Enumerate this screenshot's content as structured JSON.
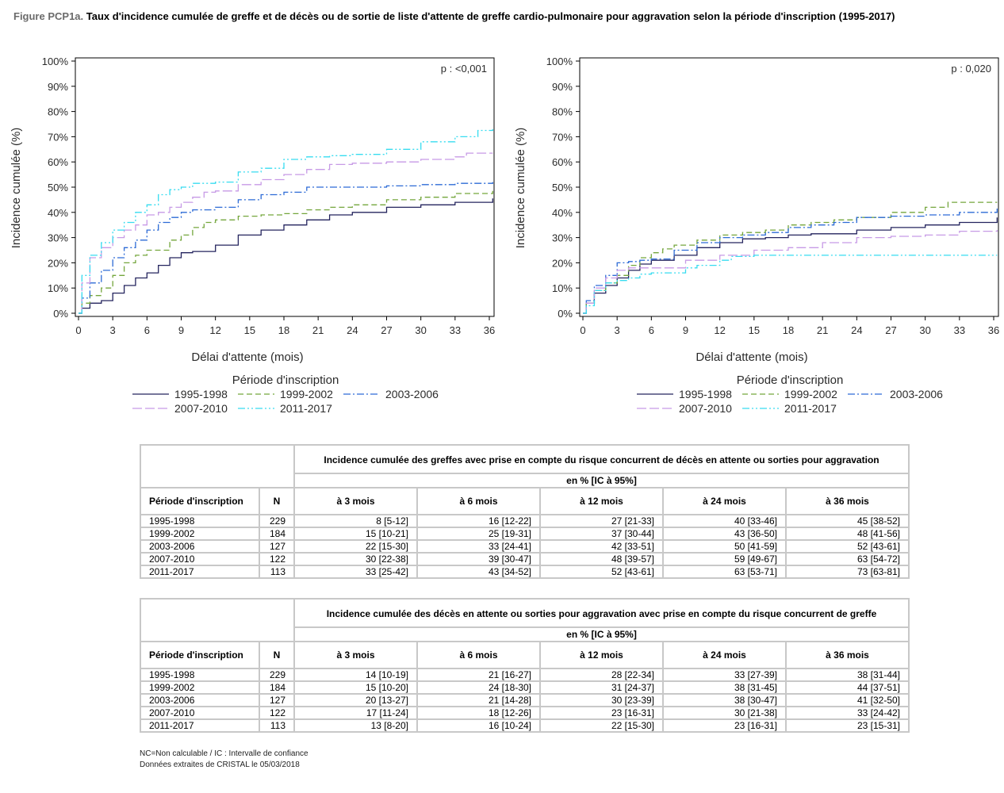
{
  "figure": {
    "prefix": "Figure PCP1a.",
    "title": "Taux d'incidence cumulée de greffe et de décès ou de sortie de liste d'attente de greffe cardio-pulmonaire pour aggravation selon la période d'inscription (1995-2017)"
  },
  "legend_colors": {
    "1995-1998": "#24245e",
    "1999-2002": "#74a63c",
    "2003-2006": "#2d6bd6",
    "2007-2010": "#c79ae6",
    "2011-2017": "#37dcf0"
  },
  "chart_data": [
    {
      "type": "line",
      "annotation": "p : <0,001",
      "xlabel": "Délai d'attente (mois)",
      "ylabel": "Incidence cumulée (%)",
      "xlim": [
        0,
        36
      ],
      "ylim": [
        0,
        100
      ],
      "xticks": [
        0,
        3,
        6,
        9,
        12,
        15,
        18,
        21,
        24,
        27,
        30,
        33,
        36
      ],
      "yticks": [
        "0%",
        "10%",
        "20%",
        "30%",
        "40%",
        "50%",
        "60%",
        "70%",
        "80%",
        "90%",
        "100%"
      ],
      "grid": false,
      "legend_title": "Période d'inscription",
      "series": [
        {
          "name": "1995-1998",
          "x": [
            0,
            0.3,
            1,
            2,
            3,
            4,
            5,
            6,
            7,
            8,
            9,
            10,
            12,
            14,
            16,
            18,
            20,
            22,
            24,
            27,
            30,
            33,
            36.3
          ],
          "y": [
            0,
            2,
            4,
            5,
            8,
            11,
            14,
            16,
            19,
            22,
            24,
            24.5,
            27,
            31,
            33,
            35,
            37,
            39,
            40,
            42,
            43,
            44,
            45.5
          ]
        },
        {
          "name": "1999-2002",
          "x": [
            0,
            0.3,
            1,
            2,
            3,
            4,
            5,
            6,
            8,
            9,
            10,
            11,
            12,
            14,
            16,
            18,
            20,
            22,
            24,
            27,
            30,
            33,
            36.3
          ],
          "y": [
            0,
            4,
            7,
            10,
            15,
            20,
            23,
            25,
            29,
            31,
            34,
            36,
            37,
            38.5,
            39,
            39.5,
            41,
            42,
            43,
            45,
            46,
            47.5,
            48.5
          ]
        },
        {
          "name": "2003-2006",
          "x": [
            0,
            0.3,
            1,
            2,
            3,
            4,
            5,
            6,
            7,
            8,
            9,
            10,
            12,
            14,
            16,
            18,
            20,
            24,
            27,
            30,
            33,
            36.3
          ],
          "y": [
            0,
            6,
            12,
            17,
            22,
            26,
            29,
            33,
            36,
            38,
            40,
            41,
            42,
            45,
            47,
            48,
            50,
            50,
            50.5,
            51,
            51.5,
            52
          ]
        },
        {
          "name": "2007-2010",
          "x": [
            0,
            0.3,
            1,
            2,
            3,
            4,
            5,
            6,
            7,
            8,
            9,
            10,
            11,
            12,
            14,
            16,
            18,
            20,
            22,
            24,
            27,
            30,
            33,
            34,
            36.3
          ],
          "y": [
            0,
            12,
            22,
            26,
            30,
            33,
            35,
            39,
            40,
            42,
            44,
            46,
            48,
            48.5,
            51,
            53,
            55,
            57,
            59,
            59.5,
            60,
            61,
            62,
            63.5,
            63.5
          ]
        },
        {
          "name": "2011-2017",
          "x": [
            0,
            0.3,
            1,
            2,
            3,
            4,
            5,
            6,
            7,
            8,
            9,
            10,
            12,
            14,
            16,
            18,
            20,
            22,
            24,
            27,
            30,
            33,
            35,
            36.3
          ],
          "y": [
            0,
            15,
            23,
            28,
            33,
            36,
            40,
            43,
            47,
            49,
            50,
            51.5,
            52,
            56,
            57.5,
            61,
            62,
            62.5,
            63,
            65,
            68,
            70,
            72.5,
            73
          ]
        }
      ]
    },
    {
      "type": "line",
      "annotation": "p : 0,020",
      "xlabel": "Délai d'attente (mois)",
      "ylabel": "Incidence cumulée (%)",
      "xlim": [
        0,
        36
      ],
      "ylim": [
        0,
        100
      ],
      "xticks": [
        0,
        3,
        6,
        9,
        12,
        15,
        18,
        21,
        24,
        27,
        30,
        33,
        36
      ],
      "yticks": [
        "0%",
        "10%",
        "20%",
        "30%",
        "40%",
        "50%",
        "60%",
        "70%",
        "80%",
        "90%",
        "100%"
      ],
      "grid": false,
      "legend_title": "Période d'inscription",
      "series": [
        {
          "name": "1995-1998",
          "x": [
            0,
            0.3,
            1,
            2,
            3,
            4,
            5,
            6,
            8,
            10,
            12,
            14,
            16,
            18,
            20,
            24,
            27,
            30,
            33,
            36.3
          ],
          "y": [
            0,
            4,
            8,
            11,
            14,
            17,
            19.5,
            21,
            23,
            26,
            28,
            29.5,
            30,
            31,
            31.5,
            33,
            34,
            35,
            36,
            38
          ]
        },
        {
          "name": "1999-2002",
          "x": [
            0,
            0.3,
            1,
            2,
            3,
            4,
            5,
            6,
            7,
            8,
            10,
            12,
            14,
            16,
            18,
            20,
            22,
            24,
            27,
            30,
            32,
            36.3
          ],
          "y": [
            0,
            4,
            9,
            12,
            15,
            19,
            22,
            24,
            25.5,
            27,
            29,
            31,
            32,
            33,
            35,
            36,
            37,
            38,
            40,
            42,
            44,
            44
          ]
        },
        {
          "name": "2003-2006",
          "x": [
            0,
            0.3,
            1,
            2,
            3,
            4,
            5,
            6,
            8,
            10,
            12,
            14,
            16,
            18,
            20,
            22,
            24,
            27,
            30,
            33,
            36.3
          ],
          "y": [
            0,
            5,
            11,
            15,
            20,
            20.5,
            21,
            21.5,
            25,
            28,
            30,
            31,
            32,
            34,
            35,
            36,
            38,
            38.5,
            39,
            40,
            41.5
          ]
        },
        {
          "name": "2007-2010",
          "x": [
            0,
            0.3,
            1,
            2,
            3,
            4,
            5,
            6,
            9,
            12,
            15,
            18,
            21,
            24,
            27,
            30,
            33,
            36.3
          ],
          "y": [
            0,
            4,
            10,
            14,
            17,
            18,
            18,
            18,
            21,
            23,
            25,
            26,
            28,
            30,
            30.5,
            31,
            32.5,
            33
          ]
        },
        {
          "name": "2011-2017",
          "x": [
            0,
            0.3,
            1,
            2,
            3,
            4,
            5,
            6,
            9,
            10,
            12,
            13,
            15,
            20,
            24,
            30,
            36.3
          ],
          "y": [
            0,
            3,
            9,
            12,
            13,
            14,
            15.5,
            16,
            18,
            19,
            21,
            22.5,
            23,
            23,
            23,
            23,
            23
          ]
        }
      ]
    }
  ],
  "tables": [
    {
      "group_header": "Incidence cumulée des greffes avec prise en compte du risque concurrent de décès en attente ou sorties pour aggravation",
      "unit_header": "en % [IC à 95%]",
      "col_period": "Période d'inscription",
      "col_n": "N",
      "col_times": [
        "à 3 mois",
        "à 6 mois",
        "à 12 mois",
        "à 24 mois",
        "à 36 mois"
      ],
      "rows": [
        {
          "period": "1995-1998",
          "n": "229",
          "values": [
            "8 [5-12]",
            "16 [12-22]",
            "27 [21-33]",
            "40 [33-46]",
            "45 [38-52]"
          ]
        },
        {
          "period": "1999-2002",
          "n": "184",
          "values": [
            "15 [10-21]",
            "25 [19-31]",
            "37 [30-44]",
            "43 [36-50]",
            "48 [41-56]"
          ]
        },
        {
          "period": "2003-2006",
          "n": "127",
          "values": [
            "22 [15-30]",
            "33 [24-41]",
            "42 [33-51]",
            "50 [41-59]",
            "52 [43-61]"
          ]
        },
        {
          "period": "2007-2010",
          "n": "122",
          "values": [
            "30 [22-38]",
            "39 [30-47]",
            "48 [39-57]",
            "59 [49-67]",
            "63 [54-72]"
          ]
        },
        {
          "period": "2011-2017",
          "n": "113",
          "values": [
            "33 [25-42]",
            "43 [34-52]",
            "52 [43-61]",
            "63 [53-71]",
            "73 [63-81]"
          ]
        }
      ]
    },
    {
      "group_header": "Incidence cumulée des décès en attente ou sorties pour aggravation avec prise en compte du risque concurrent de greffe",
      "unit_header": "en % [IC à 95%]",
      "col_period": "Période d'inscription",
      "col_n": "N",
      "col_times": [
        "à 3 mois",
        "à 6 mois",
        "à 12 mois",
        "à 24 mois",
        "à 36 mois"
      ],
      "rows": [
        {
          "period": "1995-1998",
          "n": "229",
          "values": [
            "14 [10-19]",
            "21 [16-27]",
            "28 [22-34]",
            "33 [27-39]",
            "38 [31-44]"
          ]
        },
        {
          "period": "1999-2002",
          "n": "184",
          "values": [
            "15 [10-20]",
            "24 [18-30]",
            "31 [24-37]",
            "38 [31-45]",
            "44 [37-51]"
          ]
        },
        {
          "period": "2003-2006",
          "n": "127",
          "values": [
            "20 [13-27]",
            "21 [14-28]",
            "30 [23-39]",
            "38 [30-47]",
            "41 [32-50]"
          ]
        },
        {
          "period": "2007-2010",
          "n": "122",
          "values": [
            "17 [11-24]",
            "18 [12-26]",
            "23 [16-31]",
            "30 [21-38]",
            "33 [24-42]"
          ]
        },
        {
          "period": "2011-2017",
          "n": "113",
          "values": [
            "13 [8-20]",
            "16 [10-24]",
            "22 [15-30]",
            "23 [16-31]",
            "23 [15-31]"
          ]
        }
      ]
    }
  ],
  "footnotes": [
    "NC=Non calculable / IC : Intervalle de confiance",
    "Données extraites de CRISTAL le 05/03/2018"
  ]
}
